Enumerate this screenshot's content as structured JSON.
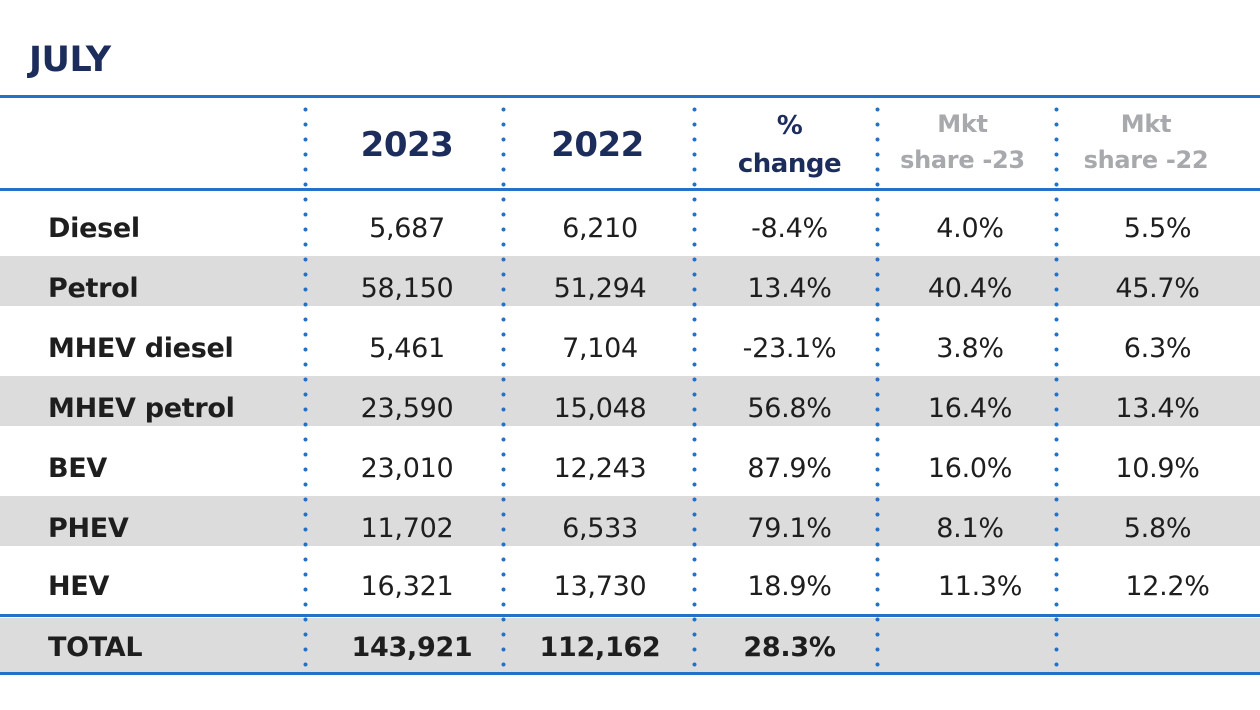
{
  "title": "JULY",
  "headers": {
    "y2023": "2023",
    "y2022": "2022",
    "change_line1": "%",
    "change_line2": "change",
    "share23_line1": "Mkt",
    "share23_line2": "share -23",
    "share22_line1": "Mkt",
    "share22_line2": "share -22"
  },
  "rows": [
    {
      "label": "Diesel",
      "y2023": "5,687",
      "y2022": "6,210",
      "change": "-8.4%",
      "share23": "4.0%",
      "share22": "5.5%"
    },
    {
      "label": "Petrol",
      "y2023": "58,150",
      "y2022": "51,294",
      "change": "13.4%",
      "share23": "40.4%",
      "share22": "45.7%"
    },
    {
      "label": "MHEV diesel",
      "y2023": "5,461",
      "y2022": "7,104",
      "change": "-23.1%",
      "share23": "3.8%",
      "share22": "6.3%"
    },
    {
      "label": "MHEV petrol",
      "y2023": "23,590",
      "y2022": "15,048",
      "change": "56.8%",
      "share23": "16.4%",
      "share22": "13.4%"
    },
    {
      "label": "BEV",
      "y2023": "23,010",
      "y2022": "12,243",
      "change": "87.9%",
      "share23": "16.0%",
      "share22": "10.9%"
    },
    {
      "label": "PHEV",
      "y2023": "11,702",
      "y2022": "6,533",
      "change": "79.1%",
      "share23": "8.1%",
      "share22": "5.8%"
    },
    {
      "label": "HEV",
      "y2023": "16,321",
      "y2022": "13,730",
      "change": "18.9%",
      "share23": "11.3%",
      "share22": "12.2%"
    }
  ],
  "total": {
    "label": "TOTAL",
    "y2023": "143,921",
    "y2022": "112,162",
    "change": "28.3%",
    "share23": "",
    "share22": ""
  },
  "colors": {
    "title": "#1c2c5b",
    "rule": "#2472c8",
    "stripe": "#dcdcdc",
    "muted_header": "#a7a9ac"
  }
}
